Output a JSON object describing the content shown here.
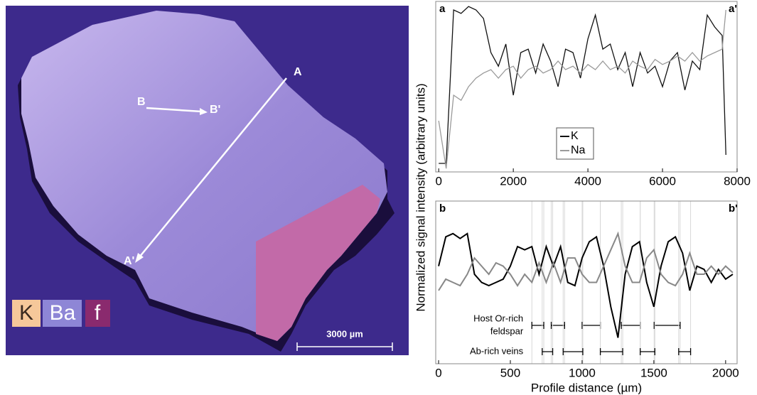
{
  "image": {
    "labels": [
      "A",
      "A'",
      "B",
      "B'"
    ],
    "legend": [
      "K",
      "Ba",
      "f"
    ],
    "scale_bar": "3000 µm"
  },
  "y_label": "Normalized signal intensity (arbitrary units)",
  "x_label": "Profile distance (µm)",
  "chart_data": [
    {
      "type": "line",
      "corner_labels": [
        "a",
        "a'"
      ],
      "xlim": [
        -80,
        8000
      ],
      "ylim": [
        0,
        1
      ],
      "xticks": [
        0,
        2000,
        4000,
        6000,
        8000
      ],
      "x": [
        0,
        200,
        400,
        600,
        800,
        1000,
        1200,
        1400,
        1600,
        1800,
        2000,
        2200,
        2400,
        2600,
        2800,
        3000,
        3200,
        3400,
        3600,
        3800,
        4000,
        4200,
        4400,
        4600,
        4800,
        5000,
        5200,
        5400,
        5600,
        5800,
        6000,
        6200,
        6400,
        6600,
        6800,
        7000,
        7200,
        7400,
        7600,
        7700
      ],
      "legend": "inside",
      "series": [
        {
          "name": "K",
          "color": "#111111",
          "values": [
            0.05,
            0.05,
            0.95,
            0.93,
            0.97,
            0.95,
            0.9,
            0.7,
            0.62,
            0.75,
            0.45,
            0.7,
            0.72,
            0.58,
            0.75,
            0.65,
            0.5,
            0.72,
            0.7,
            0.55,
            0.78,
            0.92,
            0.72,
            0.75,
            0.6,
            0.7,
            0.5,
            0.7,
            0.58,
            0.62,
            0.5,
            0.65,
            0.7,
            0.48,
            0.65,
            0.6,
            0.92,
            0.85,
            0.8,
            0.1
          ]
        },
        {
          "name": "Na",
          "color": "#9a9a9a",
          "values": [
            0.3,
            0.02,
            0.45,
            0.42,
            0.5,
            0.55,
            0.58,
            0.6,
            0.55,
            0.6,
            0.62,
            0.55,
            0.6,
            0.62,
            0.58,
            0.6,
            0.65,
            0.6,
            0.62,
            0.58,
            0.63,
            0.6,
            0.65,
            0.6,
            0.62,
            0.58,
            0.65,
            0.62,
            0.6,
            0.66,
            0.63,
            0.65,
            0.68,
            0.65,
            0.7,
            0.65,
            0.68,
            0.7,
            0.72,
            0.95
          ]
        }
      ]
    },
    {
      "type": "line",
      "corner_labels": [
        "b",
        "b'"
      ],
      "xlim": [
        -20,
        2080
      ],
      "ylim": [
        0,
        1
      ],
      "xticks": [
        0,
        500,
        1000,
        1500,
        2000
      ],
      "x": [
        0,
        50,
        100,
        150,
        200,
        250,
        300,
        350,
        400,
        450,
        500,
        550,
        600,
        650,
        700,
        750,
        800,
        850,
        900,
        950,
        1000,
        1050,
        1100,
        1150,
        1200,
        1250,
        1300,
        1350,
        1400,
        1450,
        1500,
        1550,
        1600,
        1650,
        1700,
        1750,
        1800,
        1850,
        1900,
        1950,
        2000,
        2050
      ],
      "series": [
        {
          "color": "#000000",
          "values": [
            0.6,
            0.78,
            0.8,
            0.77,
            0.8,
            0.55,
            0.5,
            0.48,
            0.5,
            0.52,
            0.6,
            0.72,
            0.7,
            0.72,
            0.55,
            0.72,
            0.6,
            0.72,
            0.5,
            0.48,
            0.65,
            0.75,
            0.78,
            0.6,
            0.35,
            0.16,
            0.55,
            0.72,
            0.75,
            0.5,
            0.35,
            0.6,
            0.75,
            0.78,
            0.68,
            0.45,
            0.6,
            0.58,
            0.5,
            0.58,
            0.52,
            0.55
          ]
        },
        {
          "color": "#888888",
          "values": [
            0.45,
            0.52,
            0.5,
            0.48,
            0.55,
            0.65,
            0.6,
            0.55,
            0.62,
            0.6,
            0.55,
            0.48,
            0.55,
            0.5,
            0.62,
            0.5,
            0.62,
            0.5,
            0.65,
            0.65,
            0.55,
            0.5,
            0.5,
            0.6,
            0.7,
            0.8,
            0.6,
            0.5,
            0.5,
            0.65,
            0.7,
            0.55,
            0.5,
            0.48,
            0.55,
            0.68,
            0.55,
            0.55,
            0.6,
            0.55,
            0.6,
            0.56
          ]
        }
      ],
      "intervals": [
        {
          "label": [
            "Host Or-rich",
            "feldspar"
          ],
          "ranges": [
            [
              650,
              733
            ],
            [
              785,
              878
            ],
            [
              1000,
              1127
            ],
            [
              1273,
              1405
            ],
            [
              1502,
              1683
            ]
          ]
        },
        {
          "label": [
            "Ab-rich veins"
          ],
          "ranges": [
            [
              722,
              795
            ],
            [
              868,
              1005
            ],
            [
              1127,
              1283
            ],
            [
              1405,
              1507
            ],
            [
              1673,
              1756
            ]
          ]
        }
      ]
    }
  ]
}
